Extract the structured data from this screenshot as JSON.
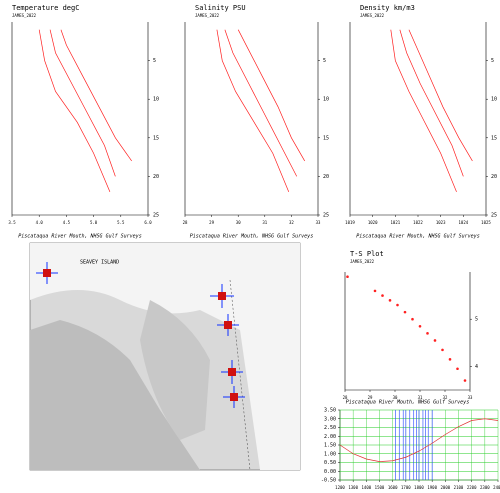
{
  "chart_data": [
    {
      "type": "profile",
      "title": "Temperature degC",
      "subtitle": "JAMES_2022",
      "caption": "Piscataqua River Mouth, NHSG Gulf Surveys",
      "xlim": [
        3.5,
        6.0
      ],
      "xticks": [
        3.5,
        {
          "value": 4,
          "label": "4.0"
        },
        4.5,
        {
          "value": 5,
          "label": "5.0"
        },
        5.5,
        {
          "value": 6,
          "label": "6.0"
        }
      ],
      "ylim": [
        25,
        0
      ],
      "yticks": [
        5,
        10,
        15,
        20,
        25
      ],
      "series": [
        {
          "color": "#ff2020",
          "x": [
            4.2,
            4.3,
            4.6,
            4.9,
            5.2,
            5.4
          ],
          "values": [
            1,
            4,
            8,
            12,
            16,
            20
          ]
        },
        {
          "color": "#ff2020",
          "x": [
            4.4,
            4.5,
            4.8,
            5.1,
            5.4,
            5.7
          ],
          "values": [
            1,
            3,
            7,
            11,
            15,
            18
          ]
        },
        {
          "color": "#ff2020",
          "x": [
            4.0,
            4.1,
            4.3,
            4.7,
            5.0,
            5.3
          ],
          "values": [
            1,
            5,
            9,
            13,
            17,
            22
          ]
        }
      ]
    },
    {
      "type": "profile",
      "title": "Salinity PSU",
      "subtitle": "JAMES_2022",
      "caption": "Piscataqua River Mouth, NHSG Gulf Surveys",
      "xlim": [
        28,
        33
      ],
      "xticks": [
        28,
        29,
        30,
        31,
        32,
        33
      ],
      "ylim": [
        25,
        0
      ],
      "yticks": [
        5,
        10,
        15,
        20,
        25
      ],
      "series": [
        {
          "color": "#ff2020",
          "x": [
            29.5,
            29.8,
            30.4,
            31.0,
            31.6,
            32.2
          ],
          "values": [
            1,
            4,
            8,
            12,
            16,
            20
          ]
        },
        {
          "color": "#ff2020",
          "x": [
            30.0,
            30.3,
            30.9,
            31.5,
            32.0,
            32.5
          ],
          "values": [
            1,
            3,
            7,
            11,
            15,
            18
          ]
        },
        {
          "color": "#ff2020",
          "x": [
            29.2,
            29.4,
            29.9,
            30.6,
            31.3,
            31.9
          ],
          "values": [
            1,
            5,
            9,
            13,
            17,
            22
          ]
        }
      ]
    },
    {
      "type": "profile",
      "title": "Density km/m3",
      "subtitle": "JAMES_2022",
      "caption": "Piscataqua River Mouth, NHSG Gulf Surveys",
      "xlim": [
        1019,
        1025
      ],
      "xticks": [
        1019,
        1020,
        1021,
        1022,
        1023,
        1024,
        1025
      ],
      "ylim": [
        25,
        0
      ],
      "yticks": [
        5,
        10,
        15,
        20,
        25
      ],
      "series": [
        {
          "color": "#ff2020",
          "x": [
            1021.2,
            1021.5,
            1022.1,
            1022.8,
            1023.5,
            1024.0
          ],
          "values": [
            1,
            4,
            8,
            12,
            16,
            20
          ]
        },
        {
          "color": "#ff2020",
          "x": [
            1021.6,
            1021.9,
            1022.5,
            1023.1,
            1023.8,
            1024.4
          ],
          "values": [
            1,
            3,
            7,
            11,
            15,
            18
          ]
        },
        {
          "color": "#ff2020",
          "x": [
            1020.8,
            1021.0,
            1021.6,
            1022.3,
            1023.0,
            1023.7
          ],
          "values": [
            1,
            5,
            9,
            13,
            17,
            22
          ]
        }
      ]
    },
    {
      "type": "scatter",
      "title": "T-S Plot",
      "subtitle": "JAMES_2022",
      "caption": "Piscataqua River Mouth, NHSG Gulf Surveys",
      "xlim": [
        28,
        33
      ],
      "xticks": [
        28,
        29,
        30,
        31,
        32,
        33
      ],
      "ylim": [
        3.5,
        6.0
      ],
      "yticks": [
        4,
        5
      ],
      "series": [
        {
          "color": "#ff2020",
          "x": [
            28.1,
            29.2,
            29.5,
            29.8,
            30.1,
            30.4,
            30.7,
            31.0,
            31.3,
            31.6,
            31.9,
            32.2,
            32.5,
            32.8
          ],
          "values": [
            5.9,
            5.6,
            5.5,
            5.4,
            5.3,
            5.15,
            5.0,
            4.85,
            4.7,
            4.55,
            4.35,
            4.15,
            3.95,
            3.7
          ]
        }
      ]
    },
    {
      "type": "line",
      "xlim": [
        1200,
        2400
      ],
      "xticks": [
        1200,
        1300,
        1400,
        1500,
        1600,
        1700,
        1800,
        1900,
        2000,
        2100,
        2200,
        2300,
        2400
      ],
      "ylim": [
        -0.5,
        3.5
      ],
      "yticks": [
        {
          "value": -0.5,
          "label": "-0.50"
        },
        {
          "value": 0,
          "label": "0.00"
        },
        {
          "value": 0.5,
          "label": "0.50"
        },
        {
          "value": 1,
          "label": "1.00"
        },
        {
          "value": 1.5,
          "label": "1.50"
        },
        {
          "value": 2,
          "label": "2.00"
        },
        {
          "value": 2.5,
          "label": "2.50"
        },
        {
          "value": 3,
          "label": "3.00"
        },
        {
          "value": 3.5,
          "label": "3.50"
        }
      ],
      "grid": true,
      "series": [
        {
          "color": "#e03030",
          "x": [
            1200,
            1300,
            1400,
            1500,
            1600,
            1700,
            1800,
            1900,
            2000,
            2100,
            2200,
            2300,
            2400
          ],
          "values": [
            1.5,
            1.0,
            0.7,
            0.55,
            0.6,
            0.8,
            1.15,
            1.6,
            2.1,
            2.55,
            2.9,
            3.0,
            2.9
          ]
        }
      ],
      "events": {
        "color": "#2040ff",
        "x": [
          1620,
          1650,
          1680,
          1700,
          1730,
          1760,
          1780,
          1800,
          1830,
          1850,
          1870,
          1900
        ]
      }
    }
  ],
  "map": {
    "labels": [
      "SEAVEY ISLAND"
    ]
  }
}
